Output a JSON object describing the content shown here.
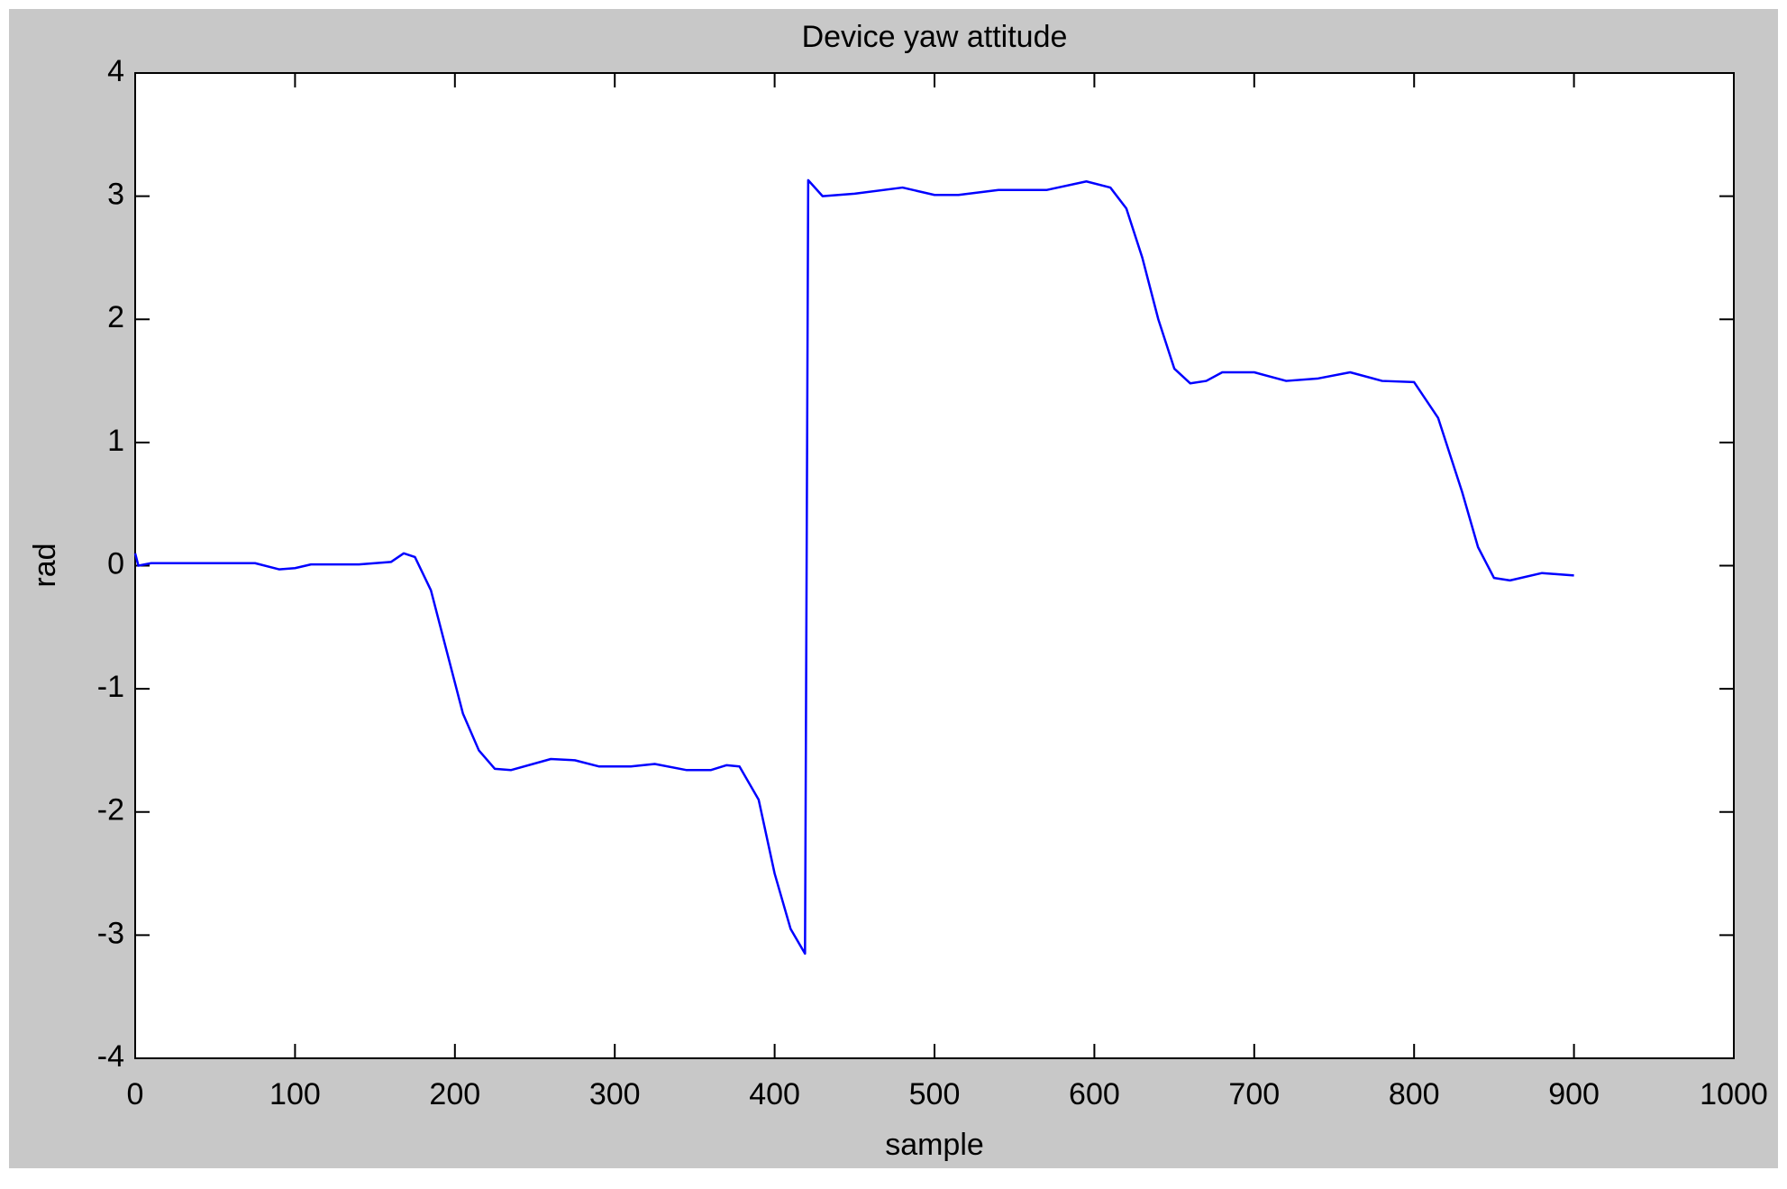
{
  "chart_data": {
    "type": "line",
    "title": "Device yaw attitude",
    "xlabel": "sample",
    "ylabel": "rad",
    "xlim": [
      0,
      1000
    ],
    "ylim": [
      -4,
      4
    ],
    "xticks": [
      0,
      100,
      200,
      300,
      400,
      500,
      600,
      700,
      800,
      900,
      1000
    ],
    "yticks": [
      -4,
      -3,
      -2,
      -1,
      0,
      1,
      2,
      3,
      4
    ],
    "grid": false,
    "x": [
      0,
      2,
      10,
      50,
      75,
      90,
      100,
      110,
      140,
      160,
      168,
      175,
      185,
      195,
      205,
      215,
      225,
      235,
      260,
      275,
      290,
      310,
      325,
      345,
      360,
      370,
      378,
      390,
      400,
      410,
      419,
      421,
      430,
      450,
      480,
      500,
      515,
      540,
      570,
      595,
      610,
      620,
      630,
      640,
      650,
      660,
      670,
      680,
      700,
      720,
      740,
      760,
      780,
      800,
      815,
      830,
      840,
      850,
      860,
      880,
      900
    ],
    "series": [
      {
        "color": "#0000ff",
        "values": [
          0.1,
          0.0,
          0.02,
          0.02,
          0.02,
          -0.03,
          -0.02,
          0.01,
          0.01,
          0.03,
          0.1,
          0.07,
          -0.2,
          -0.7,
          -1.2,
          -1.5,
          -1.65,
          -1.66,
          -1.57,
          -1.58,
          -1.63,
          -1.63,
          -1.61,
          -1.66,
          -1.66,
          -1.62,
          -1.63,
          -1.9,
          -2.5,
          -2.95,
          -3.15,
          3.13,
          3.0,
          3.02,
          3.07,
          3.01,
          3.01,
          3.05,
          3.05,
          3.12,
          3.07,
          2.9,
          2.5,
          2.0,
          1.6,
          1.48,
          1.5,
          1.57,
          1.57,
          1.5,
          1.52,
          1.57,
          1.5,
          1.49,
          1.2,
          0.6,
          0.15,
          -0.1,
          -0.12,
          -0.06,
          -0.08
        ]
      }
    ]
  }
}
